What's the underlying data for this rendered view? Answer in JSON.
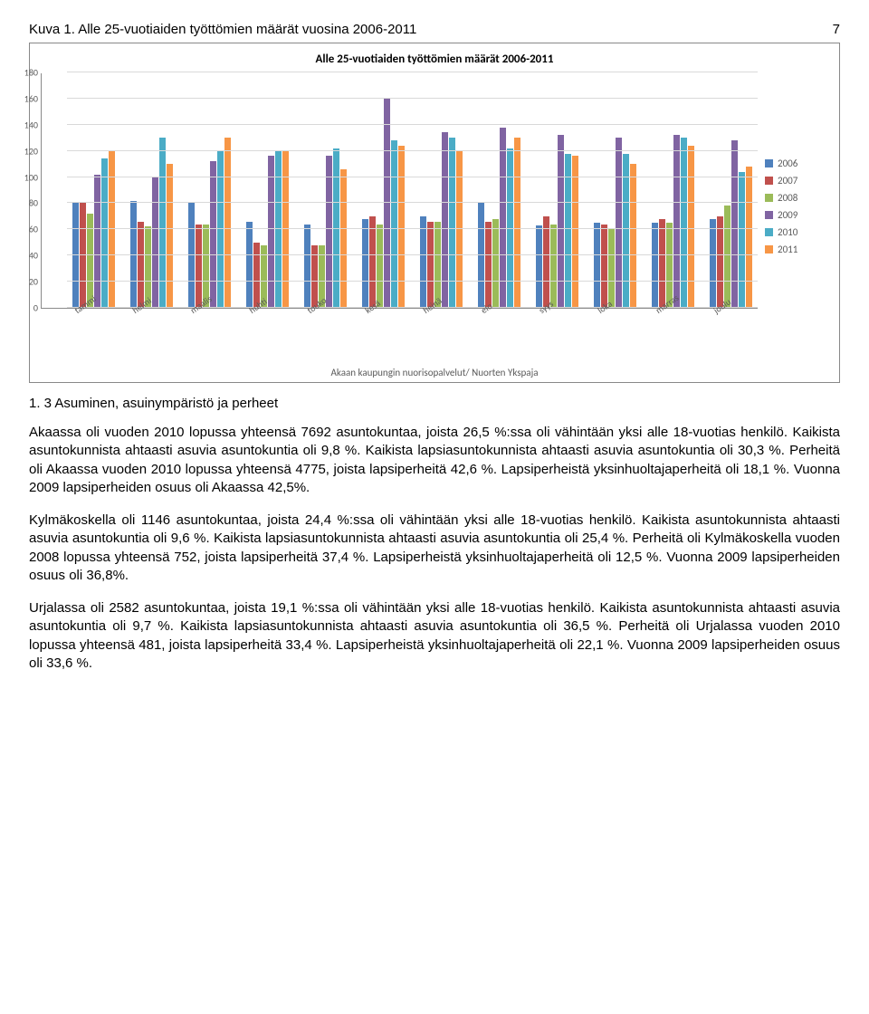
{
  "page_number": "7",
  "figure_label": "Kuva 1. Alle 25-vuotiaiden työttömien määrät vuosina 2006-2011",
  "chart": {
    "type": "bar",
    "title": "Alle 25-vuotiaiden työttömien määrät 2006-2011",
    "caption": "Akaan kaupungin nuorisopalvelut/ Nuorten Ykspaja",
    "categories": [
      "tammi",
      "helmi",
      "maalis",
      "huhti",
      "touko",
      "kesä",
      "heinä",
      "elo",
      "syys",
      "loka",
      "marras",
      "joulu"
    ],
    "series": [
      {
        "name": "2006",
        "color": "#4f81bd",
        "data": [
          80,
          82,
          80,
          66,
          64,
          68,
          70,
          80,
          63,
          65,
          65,
          68
        ]
      },
      {
        "name": "2007",
        "color": "#c0504d",
        "data": [
          80,
          66,
          64,
          50,
          48,
          70,
          66,
          66,
          70,
          64,
          68,
          70
        ]
      },
      {
        "name": "2008",
        "color": "#9bbb59",
        "data": [
          72,
          62,
          64,
          48,
          48,
          64,
          66,
          68,
          64,
          60,
          65,
          78
        ]
      },
      {
        "name": "2009",
        "color": "#8064a2",
        "data": [
          102,
          100,
          112,
          116,
          116,
          160,
          134,
          138,
          132,
          130,
          132,
          128
        ]
      },
      {
        "name": "2010",
        "color": "#4bacc6",
        "data": [
          114,
          130,
          120,
          120,
          122,
          128,
          130,
          122,
          118,
          118,
          130,
          104
        ]
      },
      {
        "name": "2011",
        "color": "#f79646",
        "data": [
          120,
          110,
          130,
          120,
          106,
          124,
          120,
          130,
          116,
          110,
          124,
          108
        ]
      }
    ],
    "ylim": [
      0,
      180
    ],
    "ytick_step": 20,
    "grid_color": "#d9d9d9"
  },
  "section_heading": "1. 3 Asuminen, asuinympäristö ja perheet",
  "para1": "Akaassa oli vuoden 2010 lopussa yhteensä 7692 asuntokuntaa, joista 26,5 %:ssa oli vähintään yksi alle 18-vuotias henkilö. Kaikista asuntokunnista ahtaasti asuvia asuntokuntia oli 9,8 %. Kaikista lapsiasuntokunnista ahtaasti asuvia asuntokuntia oli 30,3 %. Perheitä oli Akaassa vuoden 2010 lopussa yhteensä 4775, joista lapsiperheitä 42,6 %. Lapsiperheistä yksinhuoltajaperheitä oli 18,1 %. Vuonna 2009 lapsiperheiden osuus oli Akaassa 42,5%.",
  "para2": "Kylmäkoskella oli 1146 asuntokuntaa, joista 24,4 %:ssa oli vähintään yksi alle 18-vuotias henkilö. Kaikista asuntokunnista ahtaasti asuvia asuntokuntia oli 9,6 %. Kaikista lapsiasuntokunnista ahtaasti asuvia asuntokuntia oli 25,4 %. Perheitä oli Kylmäkoskella vuoden 2008 lopussa yhteensä 752, joista lapsiperheitä 37,4 %. Lapsiperheistä yksinhuoltajaperheitä oli 12,5 %. Vuonna 2009 lapsiperheiden osuus oli 36,8%.",
  "para3": "Urjalassa oli 2582 asuntokuntaa, joista 19,1 %:ssa oli vähintään yksi alle 18-vuotias henkilö. Kaikista asuntokunnista ahtaasti asuvia asuntokuntia oli 9,7 %. Kaikista lapsiasuntokunnista ahtaasti asuvia asuntokuntia oli 36,5 %. Perheitä oli Urjalassa vuoden 2010 lopussa yhteensä 481, joista lapsiperheitä 33,4 %. Lapsiperheistä yksinhuoltajaperheitä oli 22,1 %. Vuonna 2009 lapsiperheiden osuus oli 33,6 %."
}
